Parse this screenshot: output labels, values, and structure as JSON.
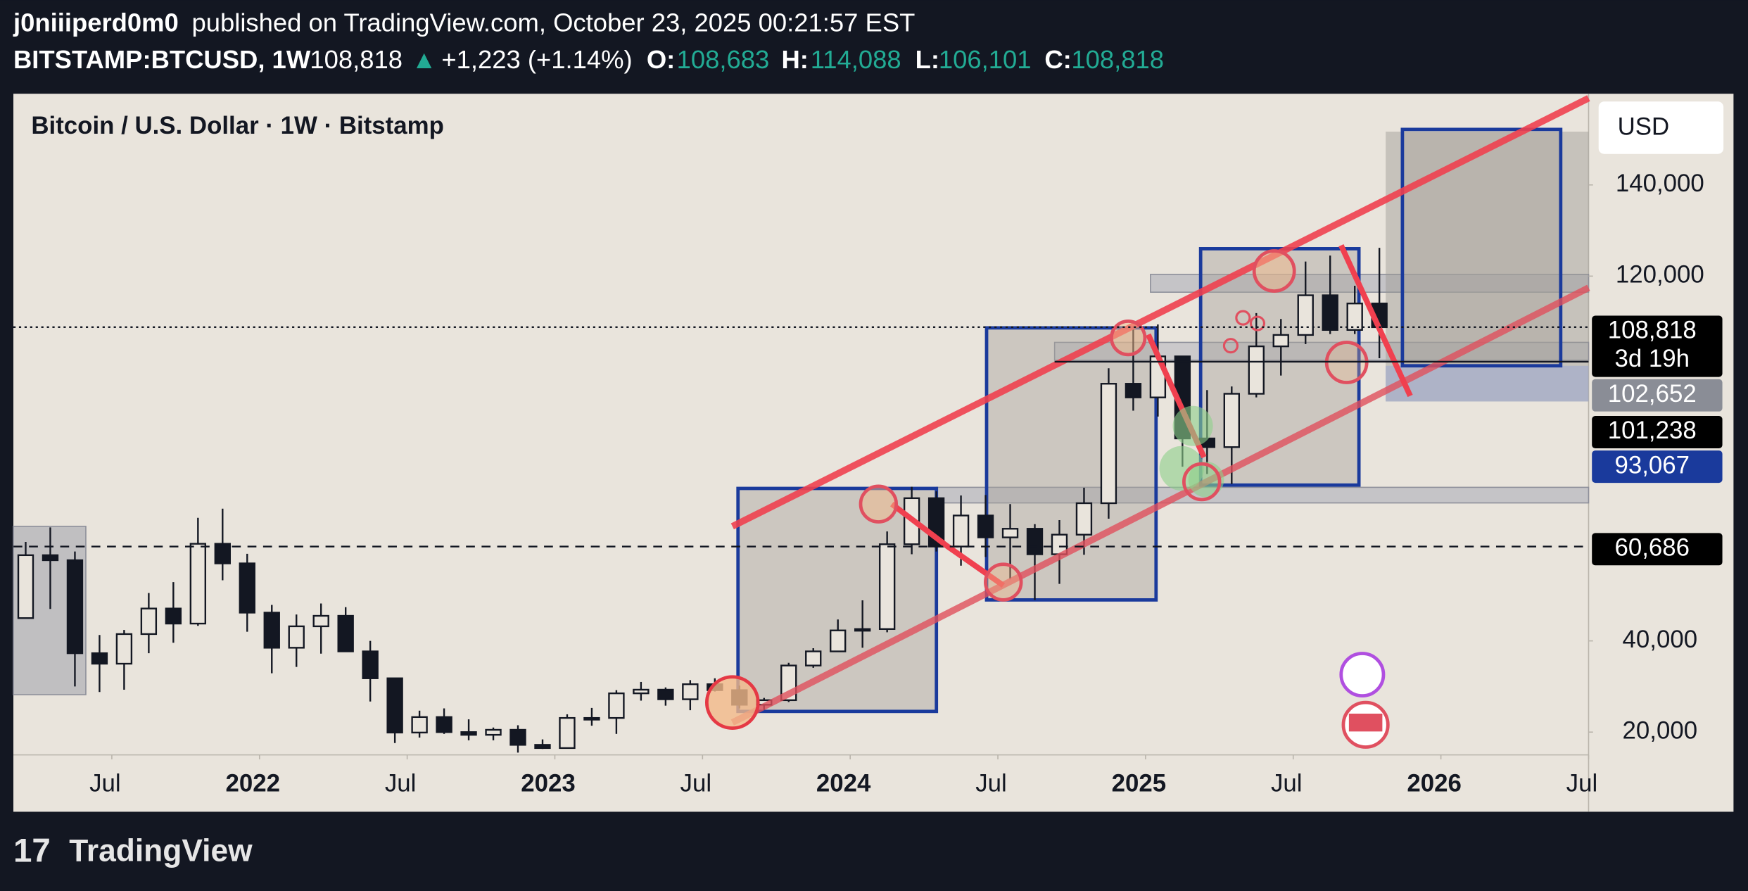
{
  "header": {
    "author": "j0niiiperd0m0",
    "published": "published on TradingView.com, October 23, 2025 00:21:57 EST"
  },
  "symbol_bar": {
    "symbol": "BITSTAMP:BTCUSD, 1W",
    "last": "108,818",
    "arrow": "▲",
    "change": "+1,223 (+1.14%)",
    "open_label": "O:",
    "open": "108,683",
    "high_label": "H:",
    "high": "114,088",
    "low_label": "L:",
    "low": "106,101",
    "close_label": "C:",
    "close": "108,818"
  },
  "chart_data": {
    "type": "candlestick",
    "title": "Bitcoin / U.S. Dollar · 1W · Bitstamp",
    "currency": "USD",
    "color": "#131722",
    "x": [
      "2021-03",
      "2021-04",
      "2021-05",
      "2021-06",
      "2021-07",
      "2021-08",
      "2021-09",
      "2021-10",
      "2021-11",
      "2021-12",
      "2022-01",
      "2022-02",
      "2022-03",
      "2022-04",
      "2022-05",
      "2022-06",
      "2022-07",
      "2022-08",
      "2022-09",
      "2022-10",
      "2022-11",
      "2022-12",
      "2023-01",
      "2023-02",
      "2023-03",
      "2023-04",
      "2023-05",
      "2023-06",
      "2023-07",
      "2023-08",
      "2023-09",
      "2023-10",
      "2023-11",
      "2023-12",
      "2024-01",
      "2024-02",
      "2024-03",
      "2024-04",
      "2024-05",
      "2024-06",
      "2024-07",
      "2024-08",
      "2024-09",
      "2024-10",
      "2024-11",
      "2024-12",
      "2025-01",
      "2025-02",
      "2025-03",
      "2025-04",
      "2025-05",
      "2025-06",
      "2025-07",
      "2025-08",
      "2025-09",
      "2025-10"
    ],
    "open": [
      45000,
      58800,
      57700,
      37300,
      35000,
      41500,
      47100,
      43800,
      61300,
      57000,
      46200,
      38500,
      43200,
      45500,
      37700,
      31800,
      19900,
      23300,
      20000,
      19400,
      20500,
      17200,
      16500,
      23100,
      23100,
      28500,
      29300,
      27200,
      30500,
      29200,
      26000,
      27000,
      34600,
      37700,
      42300,
      42600,
      61200,
      71300,
      60700,
      67500,
      62700,
      64600,
      59000,
      63300,
      70200,
      96400,
      93400,
      102400,
      84400,
      82500,
      94200,
      104600,
      107100,
      115800,
      108200,
      114000
    ],
    "high": [
      61700,
      64900,
      59600,
      41300,
      42400,
      50500,
      52900,
      67000,
      69000,
      59100,
      47900,
      45800,
      48200,
      47400,
      40000,
      31900,
      24700,
      25200,
      22800,
      21000,
      21500,
      18400,
      23900,
      25300,
      29200,
      31000,
      29800,
      31400,
      31800,
      30200,
      27500,
      35200,
      38400,
      44700,
      48900,
      64000,
      73800,
      72800,
      71900,
      72000,
      70000,
      65600,
      66500,
      73600,
      99800,
      108300,
      109400,
      102500,
      95000,
      95800,
      111900,
      110600,
      123200,
      124500,
      117900,
      126200
    ],
    "low": [
      45000,
      47000,
      30000,
      28800,
      29300,
      37300,
      39600,
      43300,
      53300,
      42000,
      32900,
      34300,
      37200,
      37600,
      26700,
      17600,
      18800,
      19600,
      18200,
      18200,
      15500,
      16300,
      16500,
      21400,
      19600,
      26900,
      25800,
      24800,
      28900,
      25200,
      24900,
      26600,
      34100,
      37600,
      38500,
      41900,
      59000,
      59600,
      56500,
      58400,
      53500,
      49000,
      52500,
      58900,
      66800,
      90500,
      89200,
      78200,
      76600,
      74400,
      93400,
      98200,
      105100,
      107300,
      107300,
      102000
    ],
    "close": [
      58800,
      57700,
      37300,
      35000,
      41500,
      47100,
      43800,
      61300,
      57000,
      46200,
      38500,
      43200,
      45500,
      37700,
      31800,
      19900,
      23300,
      20000,
      19400,
      20500,
      17200,
      16500,
      23100,
      23100,
      28500,
      29300,
      27200,
      30500,
      29200,
      26000,
      27000,
      34600,
      37700,
      42300,
      42600,
      61200,
      71300,
      60700,
      67500,
      62700,
      64600,
      59000,
      63300,
      70200,
      96400,
      93400,
      102400,
      84400,
      82500,
      94200,
      104600,
      107100,
      115800,
      108200,
      114000,
      108800
    ],
    "xlim": [
      "2021-03",
      "2026-07"
    ],
    "xticks": [
      {
        "value": "2021-07",
        "label": "Jul"
      },
      {
        "value": "2022-01",
        "label": "2022"
      },
      {
        "value": "2022-07",
        "label": "Jul"
      },
      {
        "value": "2023-01",
        "label": "2023"
      },
      {
        "value": "2023-07",
        "label": "Jul"
      },
      {
        "value": "2024-01",
        "label": "2024"
      },
      {
        "value": "2024-07",
        "label": "Jul"
      },
      {
        "value": "2025-01",
        "label": "2025"
      },
      {
        "value": "2025-07",
        "label": "Jul"
      },
      {
        "value": "2026-01",
        "label": "2026"
      },
      {
        "value": "2026-07",
        "label": "Jul"
      }
    ],
    "ylim": [
      15000,
      160000
    ],
    "yticks": [
      {
        "value": 20000,
        "label": "20,000"
      },
      {
        "value": 40000,
        "label": "40,000"
      },
      {
        "value": 120000,
        "label": "120,000"
      },
      {
        "value": 140000,
        "label": "140,000"
      }
    ],
    "price_tags": [
      {
        "value": 108818,
        "label": "108,818",
        "sublabel": "3d 19h",
        "color": "#000000",
        "line": "dotted"
      },
      {
        "value": 102652,
        "label": "102,652",
        "color": "#8a8d96"
      },
      {
        "value": 101238,
        "label": "101,238",
        "color": "#000000",
        "line": "solid"
      },
      {
        "value": 93067,
        "label": "93,067",
        "color": "#1a3a9c"
      },
      {
        "value": 60686,
        "label": "60,686",
        "color": "#000000",
        "line": "dashed"
      }
    ]
  },
  "footer": {
    "logo": "TradingView"
  }
}
